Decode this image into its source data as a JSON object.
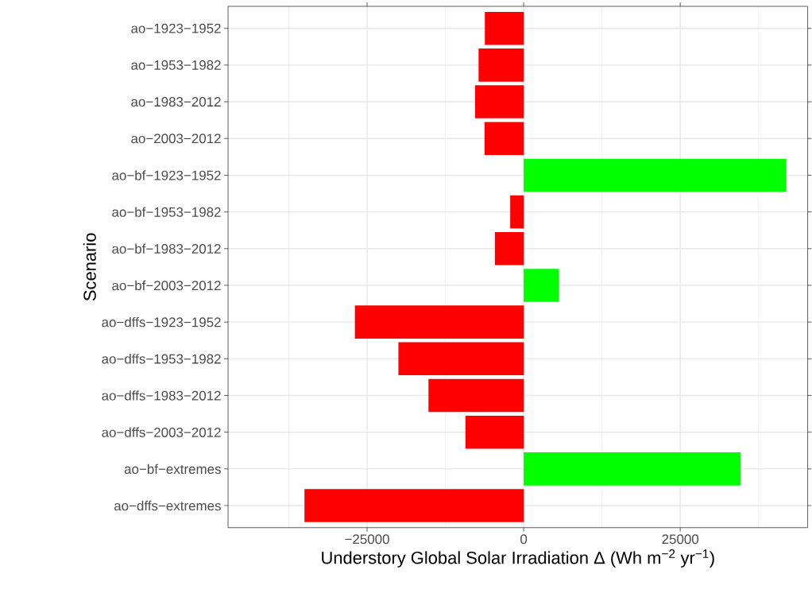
{
  "chart_data": {
    "type": "bar",
    "orientation": "horizontal",
    "xlabel": "Understory Global Solar Irradiation Δ (Wh m$^{−2}$ yr$^{−1}$)",
    "ylabel": "Scenario",
    "categories": [
      "ao−1923−1952",
      "ao−1953−1982",
      "ao−1983−2012",
      "ao−2003−2012",
      "ao−bf−1923−1952",
      "ao−bf−1953−1982",
      "ao−bf−1983−2012",
      "ao−bf−2003−2012",
      "ao−dffs−1923−1952",
      "ao−dffs−1953−1982",
      "ao−dffs−1983−2012",
      "ao−dffs−2003−2012",
      "ao−bf−extremes",
      "ao−dffs−extremes"
    ],
    "values": [
      -6200,
      -7200,
      -7750,
      -6250,
      41950,
      -2150,
      -4600,
      5600,
      -26950,
      -20000,
      -15200,
      -9300,
      34650,
      -35000
    ],
    "colors": [
      "#ff0000",
      "#ff0000",
      "#ff0000",
      "#ff0000",
      "#00ff00",
      "#ff0000",
      "#ff0000",
      "#00ff00",
      "#ff0000",
      "#ff0000",
      "#ff0000",
      "#ff0000",
      "#00ff00",
      "#ff0000"
    ],
    "xlim": [
      -47200,
      45350
    ],
    "xticks": [
      {
        "value": -37500,
        "label": null
      },
      {
        "value": -25000,
        "label": "−25000"
      },
      {
        "value": -12500,
        "label": null
      },
      0,
      {
        "value": 12500,
        "label": null
      },
      25000,
      {
        "value": 37500,
        "label": null
      }
    ],
    "grid": true
  }
}
